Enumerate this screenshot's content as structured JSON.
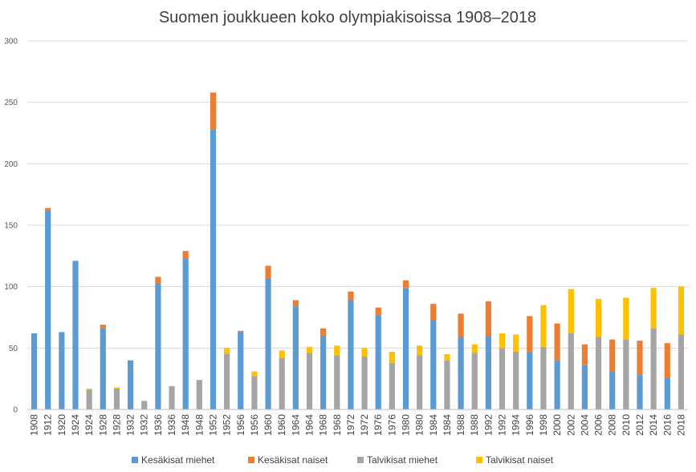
{
  "chart_data": {
    "type": "bar",
    "stacked": true,
    "title": "Suomen joukkueen koko olympiakisoissa 1908–2018",
    "ylim": [
      0,
      300
    ],
    "yticks": [
      0,
      50,
      100,
      150,
      200,
      250,
      300
    ],
    "grid": true,
    "legend_position": "bottom",
    "categories": [
      "1908",
      "1912",
      "1920",
      "1924",
      "1924",
      "1928",
      "1928",
      "1932",
      "1932",
      "1936",
      "1936",
      "1948",
      "1948",
      "1952",
      "1952",
      "1956",
      "1956",
      "1960",
      "1960",
      "1964",
      "1964",
      "1968",
      "1968",
      "1972",
      "1972",
      "1976",
      "1976",
      "1980",
      "1980",
      "1984",
      "1984",
      "1988",
      "1988",
      "1992",
      "1992",
      "1994",
      "1996",
      "1998",
      "2000",
      "2002",
      "2004",
      "2006",
      "2008",
      "2010",
      "2012",
      "2014",
      "2016",
      "2018"
    ],
    "series": [
      {
        "name": "Kesäkisat miehet",
        "color": "#5b9bd5",
        "values": [
          62,
          162,
          63,
          121,
          0,
          66,
          0,
          40,
          0,
          103,
          0,
          123,
          0,
          228,
          0,
          63,
          0,
          107,
          0,
          84,
          0,
          60,
          0,
          89,
          0,
          77,
          0,
          99,
          0,
          73,
          0,
          59,
          0,
          60,
          0,
          0,
          47,
          0,
          40,
          0,
          36,
          0,
          31,
          0,
          28,
          0,
          26,
          0
        ]
      },
      {
        "name": "Kesäkisat naiset",
        "color": "#ed7d31",
        "values": [
          0,
          2,
          0,
          0,
          0,
          3,
          0,
          0,
          0,
          5,
          0,
          6,
          0,
          30,
          0,
          1,
          0,
          10,
          0,
          5,
          0,
          6,
          0,
          7,
          0,
          6,
          0,
          6,
          0,
          13,
          0,
          19,
          0,
          28,
          0,
          0,
          29,
          0,
          30,
          0,
          17,
          0,
          26,
          0,
          28,
          0,
          28,
          0
        ]
      },
      {
        "name": "Talvikisat miehet",
        "color": "#a5a5a5",
        "values": [
          0,
          0,
          0,
          0,
          16,
          0,
          17,
          0,
          7,
          0,
          19,
          0,
          24,
          0,
          45,
          0,
          27,
          0,
          42,
          0,
          46,
          0,
          44,
          0,
          43,
          0,
          38,
          0,
          44,
          0,
          40,
          0,
          46,
          0,
          50,
          47,
          0,
          51,
          0,
          62,
          0,
          59,
          0,
          57,
          0,
          66,
          0,
          61
        ]
      },
      {
        "name": "Talvikisat naiset",
        "color": "#ffc000",
        "values": [
          0,
          0,
          0,
          0,
          1,
          0,
          1,
          0,
          0,
          0,
          0,
          0,
          0,
          0,
          5,
          0,
          4,
          0,
          6,
          0,
          5,
          0,
          8,
          0,
          7,
          0,
          9,
          0,
          8,
          0,
          5,
          0,
          7,
          0,
          12,
          14,
          0,
          34,
          0,
          36,
          0,
          31,
          0,
          34,
          0,
          33,
          0,
          39
        ]
      }
    ]
  }
}
